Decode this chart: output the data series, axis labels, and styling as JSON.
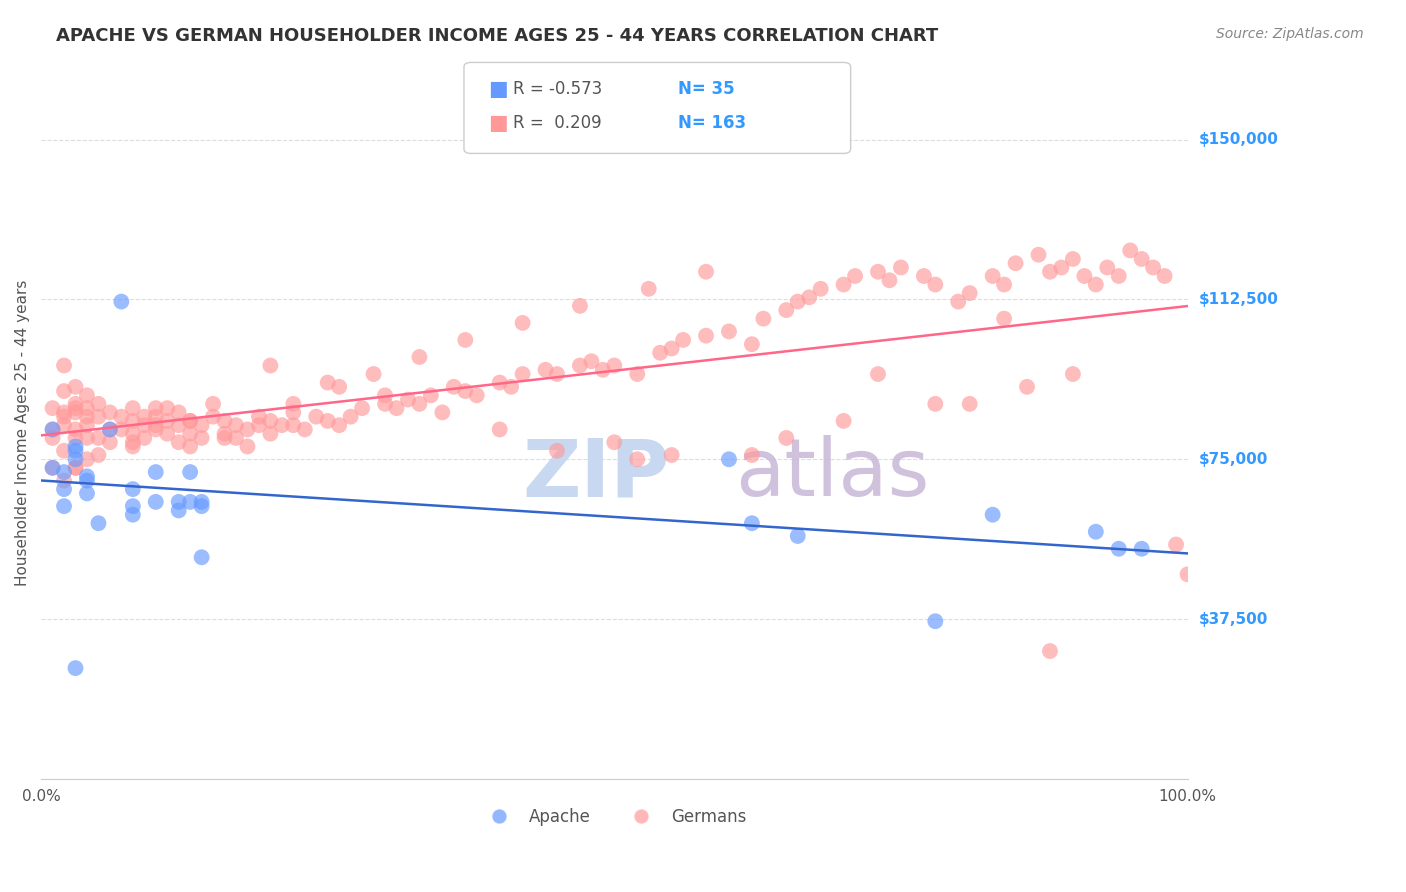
{
  "title": "APACHE VS GERMAN HOUSEHOLDER INCOME AGES 25 - 44 YEARS CORRELATION CHART",
  "source_text": "Source: ZipAtlas.com",
  "ylabel": "Householder Income Ages 25 - 44 years",
  "xlim": [
    0.0,
    1.0
  ],
  "ylim": [
    0,
    162500
  ],
  "yticks": [
    0,
    37500,
    75000,
    112500,
    150000
  ],
  "ytick_labels": [
    "",
    "$37,500",
    "$75,000",
    "$112,500",
    "$150,000"
  ],
  "xticks": [
    0.0,
    0.1,
    0.2,
    0.3,
    0.4,
    0.5,
    0.6,
    0.7,
    0.8,
    0.9,
    1.0
  ],
  "xtick_labels": [
    "0.0%",
    "",
    "",
    "",
    "",
    "",
    "",
    "",
    "",
    "",
    "100.0%"
  ],
  "apache_color": "#6699ff",
  "german_color": "#ff9999",
  "apache_line_color": "#3366cc",
  "german_line_color": "#ff6688",
  "watermark_zip": "ZIP",
  "watermark_atlas": "atlas",
  "watermark_color_zip": "#c8d8f0",
  "watermark_color_atlas": "#c8b8d8",
  "legend_R_apache": "-0.573",
  "legend_N_apache": "35",
  "legend_R_german": "0.209",
  "legend_N_german": "163",
  "apache_x": [
    0.01,
    0.01,
    0.02,
    0.02,
    0.02,
    0.03,
    0.03,
    0.03,
    0.04,
    0.04,
    0.04,
    0.05,
    0.06,
    0.07,
    0.08,
    0.08,
    0.08,
    0.1,
    0.1,
    0.12,
    0.12,
    0.13,
    0.13,
    0.14,
    0.14,
    0.14,
    0.6,
    0.62,
    0.66,
    0.78,
    0.83,
    0.92,
    0.94,
    0.96,
    0.03
  ],
  "apache_y": [
    82000,
    73000,
    68000,
    64000,
    72000,
    78000,
    77000,
    75000,
    71000,
    70000,
    67000,
    60000,
    82000,
    112000,
    68000,
    64000,
    62000,
    72000,
    65000,
    65000,
    63000,
    72000,
    65000,
    64000,
    65000,
    52000,
    75000,
    60000,
    57000,
    37000,
    62000,
    58000,
    54000,
    54000,
    26000
  ],
  "german_x": [
    0.01,
    0.01,
    0.01,
    0.01,
    0.02,
    0.02,
    0.02,
    0.02,
    0.02,
    0.03,
    0.03,
    0.03,
    0.03,
    0.03,
    0.03,
    0.03,
    0.04,
    0.04,
    0.04,
    0.04,
    0.04,
    0.04,
    0.05,
    0.05,
    0.05,
    0.06,
    0.06,
    0.07,
    0.07,
    0.08,
    0.08,
    0.08,
    0.08,
    0.09,
    0.09,
    0.1,
    0.1,
    0.1,
    0.11,
    0.11,
    0.12,
    0.12,
    0.12,
    0.13,
    0.13,
    0.13,
    0.14,
    0.14,
    0.15,
    0.16,
    0.16,
    0.17,
    0.17,
    0.18,
    0.18,
    0.19,
    0.2,
    0.2,
    0.21,
    0.22,
    0.22,
    0.23,
    0.24,
    0.25,
    0.26,
    0.27,
    0.28,
    0.3,
    0.31,
    0.32,
    0.33,
    0.34,
    0.36,
    0.37,
    0.38,
    0.4,
    0.41,
    0.42,
    0.44,
    0.45,
    0.47,
    0.48,
    0.49,
    0.5,
    0.52,
    0.54,
    0.55,
    0.56,
    0.58,
    0.6,
    0.62,
    0.63,
    0.65,
    0.66,
    0.67,
    0.68,
    0.7,
    0.71,
    0.73,
    0.74,
    0.75,
    0.77,
    0.78,
    0.8,
    0.81,
    0.83,
    0.84,
    0.85,
    0.87,
    0.88,
    0.89,
    0.9,
    0.91,
    0.92,
    0.93,
    0.94,
    0.95,
    0.96,
    0.97,
    0.98,
    0.99,
    1.0,
    0.02,
    0.52,
    0.73,
    0.81,
    0.88,
    0.62,
    0.84,
    0.9,
    0.86,
    0.78,
    0.7,
    0.65,
    0.55,
    0.5,
    0.45,
    0.4,
    0.35,
    0.3,
    0.25,
    0.2,
    0.15,
    0.1,
    0.08,
    0.05,
    0.03,
    0.02,
    0.06,
    0.09,
    0.11,
    0.13,
    0.16,
    0.19,
    0.22,
    0.26,
    0.29,
    0.33,
    0.37,
    0.42,
    0.47,
    0.53,
    0.58
  ],
  "german_y": [
    80000,
    73000,
    87000,
    82000,
    77000,
    97000,
    91000,
    86000,
    83000,
    92000,
    88000,
    87000,
    86000,
    82000,
    80000,
    73000,
    90000,
    87000,
    85000,
    83000,
    80000,
    75000,
    88000,
    85000,
    80000,
    86000,
    79000,
    85000,
    82000,
    87000,
    84000,
    81000,
    78000,
    83000,
    80000,
    87000,
    85000,
    82000,
    84000,
    81000,
    86000,
    83000,
    79000,
    84000,
    81000,
    78000,
    83000,
    80000,
    85000,
    84000,
    80000,
    83000,
    80000,
    82000,
    78000,
    83000,
    84000,
    81000,
    83000,
    86000,
    83000,
    82000,
    85000,
    84000,
    83000,
    85000,
    87000,
    88000,
    87000,
    89000,
    88000,
    90000,
    92000,
    91000,
    90000,
    93000,
    92000,
    95000,
    96000,
    95000,
    97000,
    98000,
    96000,
    97000,
    95000,
    100000,
    101000,
    103000,
    104000,
    105000,
    102000,
    108000,
    110000,
    112000,
    113000,
    115000,
    116000,
    118000,
    119000,
    117000,
    120000,
    118000,
    116000,
    112000,
    114000,
    118000,
    116000,
    121000,
    123000,
    119000,
    120000,
    122000,
    118000,
    116000,
    120000,
    118000,
    124000,
    122000,
    120000,
    118000,
    55000,
    48000,
    85000,
    75000,
    95000,
    88000,
    30000,
    76000,
    108000,
    95000,
    92000,
    88000,
    84000,
    80000,
    76000,
    79000,
    77000,
    82000,
    86000,
    90000,
    93000,
    97000,
    88000,
    83000,
    79000,
    76000,
    73000,
    70000,
    82000,
    85000,
    87000,
    84000,
    81000,
    85000,
    88000,
    92000,
    95000,
    99000,
    103000,
    107000,
    111000,
    115000,
    119000
  ],
  "title_fontsize": 13,
  "tick_fontsize": 11,
  "label_fontsize": 11,
  "source_fontsize": 10,
  "background_color": "#ffffff",
  "grid_color": "#dddddd"
}
